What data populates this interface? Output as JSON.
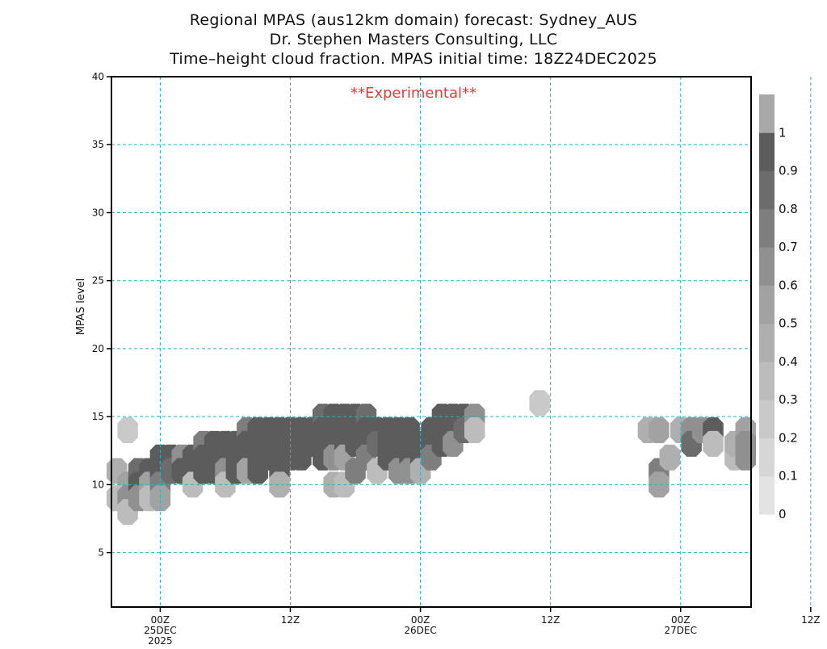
{
  "header": {
    "line1": "Regional MPAS (aus12km domain) forecast: Sydney_AUS",
    "line2": "Dr. Stephen Masters Consulting, LLC",
    "line3": "Time–height cloud fraction.   MPAS initial time: 18Z24DEC2025"
  },
  "annotation": {
    "text": "**Experimental**",
    "color": "#e03c3c"
  },
  "chart_data": {
    "type": "heatmap",
    "title": "Time–height cloud fraction.",
    "xlabel": "",
    "ylabel": "MPAS level",
    "x_units": "forecast hour from 18Z24DEC2025",
    "xlim": [
      1.5,
      60.5
    ],
    "ylim": [
      1,
      40
    ],
    "grid": true,
    "grid_color": "#22b5c8",
    "y_ticks": [
      5,
      10,
      15,
      20,
      25,
      30,
      35,
      40
    ],
    "x_ticks": [
      {
        "hour": 6,
        "lines": [
          "00Z",
          "25DEC",
          "2025"
        ]
      },
      {
        "hour": 18,
        "lines": [
          "12Z"
        ]
      },
      {
        "hour": 30,
        "lines": [
          "00Z",
          "26DEC"
        ]
      },
      {
        "hour": 42,
        "lines": [
          "12Z"
        ]
      },
      {
        "hour": 54,
        "lines": [
          "00Z",
          "27DEC"
        ]
      },
      {
        "hour": 66,
        "lines": [
          "12Z"
        ]
      }
    ],
    "colorbar": {
      "levels": [
        0,
        0.1,
        0.2,
        0.3,
        0.4,
        0.5,
        0.6,
        0.7,
        0.8,
        0.9,
        1
      ],
      "colors": [
        "#e3e3e3",
        "#d6d6d6",
        "#c9c9c9",
        "#bcbcbc",
        "#afafaf",
        "#a2a2a2",
        "#909090",
        "#7e7e7e",
        "#6c6c6c",
        "#5c5c5c",
        "#a8a8a8"
      ],
      "labels": [
        "0",
        "0.1",
        "0.2",
        "0.3",
        "0.4",
        "0.5",
        "0.6",
        "0.7",
        "0.8",
        "0.9",
        "1"
      ]
    },
    "cloud_cells": [
      {
        "x": 3,
        "y": 14,
        "v": 0.2
      },
      {
        "x": 2,
        "y": 11,
        "v": 0.4
      },
      {
        "x": 3,
        "y": 10,
        "v": 0.5
      },
      {
        "x": 2,
        "y": 9,
        "v": 0.3
      },
      {
        "x": 3,
        "y": 9,
        "v": 0.6
      },
      {
        "x": 3,
        "y": 8,
        "v": 0.3
      },
      {
        "x": 4,
        "y": 11,
        "v": 0.8
      },
      {
        "x": 4,
        "y": 10,
        "v": 0.9
      },
      {
        "x": 4,
        "y": 9,
        "v": 0.6
      },
      {
        "x": 5,
        "y": 11,
        "v": 0.9
      },
      {
        "x": 5,
        "y": 10,
        "v": 0.5
      },
      {
        "x": 5,
        "y": 9,
        "v": 0.3
      },
      {
        "x": 6,
        "y": 12,
        "v": 0.9
      },
      {
        "x": 6,
        "y": 11,
        "v": 0.9
      },
      {
        "x": 6,
        "y": 10,
        "v": 0.7
      },
      {
        "x": 6,
        "y": 9,
        "v": 0.5
      },
      {
        "x": 7,
        "y": 12,
        "v": 0.9
      },
      {
        "x": 7,
        "y": 11,
        "v": 0.8
      },
      {
        "x": 8,
        "y": 12,
        "v": 0.6
      },
      {
        "x": 8,
        "y": 11,
        "v": 0.9
      },
      {
        "x": 9,
        "y": 12,
        "v": 0.9
      },
      {
        "x": 9,
        "y": 11,
        "v": 0.9
      },
      {
        "x": 9,
        "y": 10,
        "v": 0.3
      },
      {
        "x": 10,
        "y": 13,
        "v": 0.7
      },
      {
        "x": 10,
        "y": 12,
        "v": 0.9
      },
      {
        "x": 10,
        "y": 11,
        "v": 0.9
      },
      {
        "x": 11,
        "y": 13,
        "v": 0.9
      },
      {
        "x": 11,
        "y": 12,
        "v": 0.9
      },
      {
        "x": 11,
        "y": 11,
        "v": 0.9
      },
      {
        "x": 12,
        "y": 13,
        "v": 0.9
      },
      {
        "x": 12,
        "y": 12,
        "v": 0.9
      },
      {
        "x": 12,
        "y": 11,
        "v": 0.6
      },
      {
        "x": 12,
        "y": 10,
        "v": 0.3
      },
      {
        "x": 13,
        "y": 13,
        "v": 0.9
      },
      {
        "x": 13,
        "y": 12,
        "v": 0.9
      },
      {
        "x": 13,
        "y": 11,
        "v": 0.9
      },
      {
        "x": 14,
        "y": 14,
        "v": 0.7
      },
      {
        "x": 14,
        "y": 13,
        "v": 0.9
      },
      {
        "x": 14,
        "y": 12,
        "v": 0.9
      },
      {
        "x": 14,
        "y": 11,
        "v": 0.5
      },
      {
        "x": 15,
        "y": 14,
        "v": 0.9
      },
      {
        "x": 15,
        "y": 13,
        "v": 0.9
      },
      {
        "x": 15,
        "y": 12,
        "v": 0.9
      },
      {
        "x": 15,
        "y": 11,
        "v": 0.9
      },
      {
        "x": 16,
        "y": 14,
        "v": 0.9
      },
      {
        "x": 16,
        "y": 13,
        "v": 0.9
      },
      {
        "x": 16,
        "y": 12,
        "v": 0.9
      },
      {
        "x": 17,
        "y": 14,
        "v": 0.9
      },
      {
        "x": 17,
        "y": 13,
        "v": 0.9
      },
      {
        "x": 17,
        "y": 12,
        "v": 0.9
      },
      {
        "x": 17,
        "y": 11,
        "v": 0.9
      },
      {
        "x": 17,
        "y": 10,
        "v": 0.4
      },
      {
        "x": 18,
        "y": 14,
        "v": 0.9
      },
      {
        "x": 18,
        "y": 13,
        "v": 0.9
      },
      {
        "x": 18,
        "y": 12,
        "v": 0.9
      },
      {
        "x": 19,
        "y": 14,
        "v": 0.9
      },
      {
        "x": 19,
        "y": 13,
        "v": 0.9
      },
      {
        "x": 19,
        "y": 12,
        "v": 0.9
      },
      {
        "x": 20,
        "y": 14,
        "v": 0.9
      },
      {
        "x": 20,
        "y": 13,
        "v": 0.9
      },
      {
        "x": 21,
        "y": 15,
        "v": 0.8
      },
      {
        "x": 21,
        "y": 14,
        "v": 0.9
      },
      {
        "x": 21,
        "y": 13,
        "v": 0.9
      },
      {
        "x": 21,
        "y": 12,
        "v": 0.9
      },
      {
        "x": 22,
        "y": 15,
        "v": 0.9
      },
      {
        "x": 22,
        "y": 14,
        "v": 0.9
      },
      {
        "x": 22,
        "y": 13,
        "v": 0.9
      },
      {
        "x": 22,
        "y": 12,
        "v": 0.6
      },
      {
        "x": 22,
        "y": 10,
        "v": 0.4
      },
      {
        "x": 23,
        "y": 15,
        "v": 0.9
      },
      {
        "x": 23,
        "y": 14,
        "v": 0.9
      },
      {
        "x": 23,
        "y": 13,
        "v": 0.9
      },
      {
        "x": 23,
        "y": 12,
        "v": 0.5
      },
      {
        "x": 23,
        "y": 10,
        "v": 0.3
      },
      {
        "x": 24,
        "y": 15,
        "v": 0.9
      },
      {
        "x": 24,
        "y": 14,
        "v": 0.9
      },
      {
        "x": 24,
        "y": 13,
        "v": 0.9
      },
      {
        "x": 24,
        "y": 11,
        "v": 0.7
      },
      {
        "x": 25,
        "y": 15,
        "v": 0.8
      },
      {
        "x": 25,
        "y": 14,
        "v": 0.9
      },
      {
        "x": 25,
        "y": 13,
        "v": 0.9
      },
      {
        "x": 25,
        "y": 12,
        "v": 0.7
      },
      {
        "x": 26,
        "y": 14,
        "v": 0.9
      },
      {
        "x": 26,
        "y": 13,
        "v": 0.8
      },
      {
        "x": 26,
        "y": 11,
        "v": 0.3
      },
      {
        "x": 27,
        "y": 14,
        "v": 0.9
      },
      {
        "x": 27,
        "y": 13,
        "v": 0.9
      },
      {
        "x": 27,
        "y": 12,
        "v": 0.9
      },
      {
        "x": 28,
        "y": 14,
        "v": 0.9
      },
      {
        "x": 28,
        "y": 13,
        "v": 0.9
      },
      {
        "x": 28,
        "y": 12,
        "v": 0.9
      },
      {
        "x": 28,
        "y": 11,
        "v": 0.6
      },
      {
        "x": 29,
        "y": 14,
        "v": 0.9
      },
      {
        "x": 29,
        "y": 13,
        "v": 0.9
      },
      {
        "x": 29,
        "y": 12,
        "v": 0.9
      },
      {
        "x": 29,
        "y": 11,
        "v": 0.6
      },
      {
        "x": 30,
        "y": 13,
        "v": 0.9
      },
      {
        "x": 30,
        "y": 12,
        "v": 0.9
      },
      {
        "x": 30,
        "y": 11,
        "v": 0.4
      },
      {
        "x": 31,
        "y": 14,
        "v": 0.9
      },
      {
        "x": 31,
        "y": 13,
        "v": 0.9
      },
      {
        "x": 31,
        "y": 12,
        "v": 0.7
      },
      {
        "x": 32,
        "y": 15,
        "v": 0.9
      },
      {
        "x": 32,
        "y": 14,
        "v": 0.9
      },
      {
        "x": 32,
        "y": 13,
        "v": 0.9
      },
      {
        "x": 33,
        "y": 15,
        "v": 0.9
      },
      {
        "x": 33,
        "y": 14,
        "v": 0.9
      },
      {
        "x": 33,
        "y": 13,
        "v": 0.6
      },
      {
        "x": 34,
        "y": 15,
        "v": 0.9
      },
      {
        "x": 34,
        "y": 14,
        "v": 0.8
      },
      {
        "x": 35,
        "y": 15,
        "v": 0.6
      },
      {
        "x": 35,
        "y": 14,
        "v": 0.3
      },
      {
        "x": 41,
        "y": 16,
        "v": 0.2
      },
      {
        "x": 51,
        "y": 14,
        "v": 0.4
      },
      {
        "x": 52,
        "y": 14,
        "v": 0.5
      },
      {
        "x": 52,
        "y": 11,
        "v": 0.7
      },
      {
        "x": 52,
        "y": 10,
        "v": 0.5
      },
      {
        "x": 53,
        "y": 12,
        "v": 0.4
      },
      {
        "x": 54,
        "y": 14,
        "v": 0.4
      },
      {
        "x": 55,
        "y": 14,
        "v": 0.6
      },
      {
        "x": 55,
        "y": 13,
        "v": 0.8
      },
      {
        "x": 56,
        "y": 14,
        "v": 0.6
      },
      {
        "x": 57,
        "y": 14,
        "v": 0.9
      },
      {
        "x": 57,
        "y": 13,
        "v": 0.3
      },
      {
        "x": 59,
        "y": 12,
        "v": 0.3
      },
      {
        "x": 59,
        "y": 13,
        "v": 0.4
      },
      {
        "x": 60,
        "y": 14,
        "v": 0.5
      },
      {
        "x": 60,
        "y": 13,
        "v": 0.6
      },
      {
        "x": 60,
        "y": 12,
        "v": 0.6
      }
    ]
  }
}
